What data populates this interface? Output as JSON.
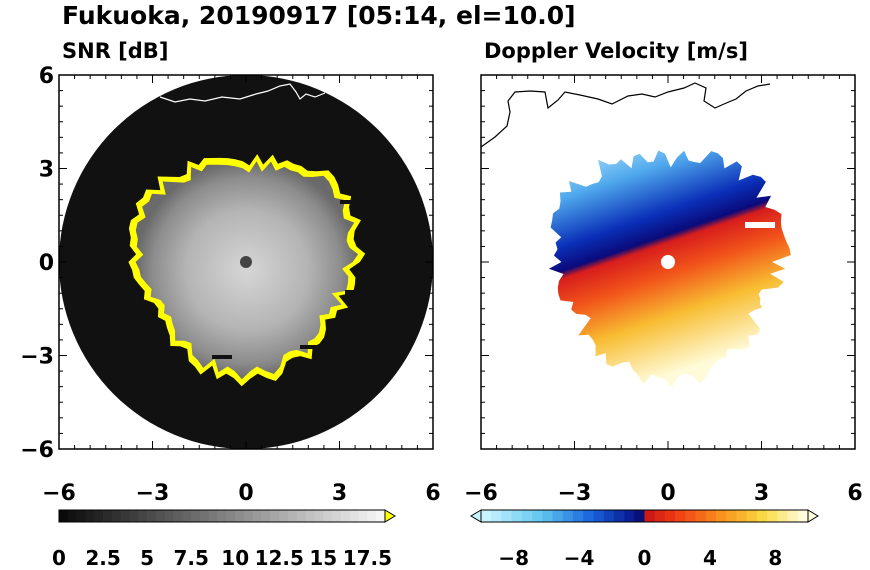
{
  "figure": {
    "title": "Fukuoka, 20190917 [05:14, el=10.0]"
  },
  "chart_data": [
    {
      "type": "heatmap",
      "title": "SNR [dB]",
      "xlim": [
        -6,
        6
      ],
      "ylim": [
        -6,
        6
      ],
      "xticks": [
        "−6",
        "−3",
        "0",
        "3",
        "6"
      ],
      "yticks": [
        "6",
        "3",
        "0",
        "−3",
        "−6"
      ],
      "colorbar": {
        "min": 0,
        "max": 18.5,
        "step": 0.5,
        "tick_values": [
          0,
          2.5,
          5,
          7.5,
          10,
          12.5,
          15,
          17.5
        ],
        "tick_labels": [
          "0",
          "2.5",
          "5",
          "7.5",
          "10",
          "12.5",
          "15",
          "17.5"
        ],
        "extend": "max",
        "over_color": "#ffff00"
      },
      "scan_range_radius": 6.0,
      "echo_region": {
        "typical_radius": 3.4,
        "edge_color": "#ffff00"
      },
      "grid": false
    },
    {
      "type": "heatmap",
      "title": "Doppler Velocity [m/s]",
      "xlim": [
        -6,
        6
      ],
      "ylim": [
        -6,
        6
      ],
      "xticks": [
        "−6",
        "−3",
        "0",
        "3",
        "6"
      ],
      "yticks": [],
      "colorbar": {
        "min": -10,
        "max": 10,
        "step": 0.625,
        "tick_values": [
          -8,
          -4,
          0,
          4,
          8
        ],
        "tick_labels": [
          "−8",
          "−4",
          "0",
          "4",
          "8"
        ],
        "extend": "both"
      },
      "echo_region": {
        "typical_radius": 3.6
      },
      "grid": false
    }
  ]
}
